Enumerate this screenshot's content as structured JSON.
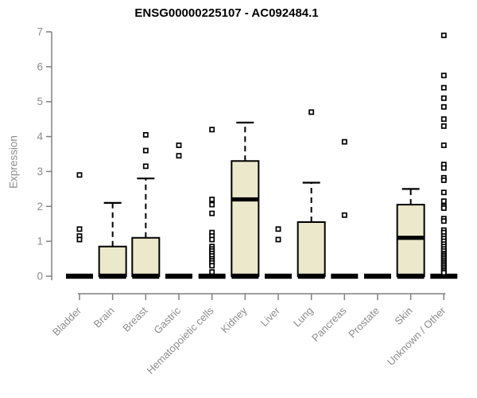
{
  "window": {
    "title": "ENSG00000225107 - AC092484.1"
  },
  "colors": {
    "background": "#ffffff",
    "box_fill": "#ECE8CB",
    "box_stroke": "#000000",
    "median_color": "#000000",
    "outlier_stroke": "#000000",
    "axis_line": "#808080",
    "axis_text": "#8c8c8c",
    "title_text": "#000000"
  },
  "chart_data": {
    "type": "boxplot",
    "title": "ENSG00000225107 - AC092484.1",
    "xlabel": "",
    "ylabel": "Expression",
    "ylim": [
      0,
      7
    ],
    "yticks": [
      0,
      1,
      2,
      3,
      4,
      5,
      6,
      7
    ],
    "grid": false,
    "legend": null,
    "categories": [
      "Bladder",
      "Brain",
      "Breast",
      "Gastric",
      "Hematopoietic cells",
      "Kidney",
      "Liver",
      "Lung",
      "Pancreas",
      "Prostate",
      "Skin",
      "Unknown / Other"
    ],
    "series": [
      {
        "category": "Bladder",
        "whisker_low": 0,
        "q1": 0,
        "median": 0,
        "q3": 0,
        "whisker_high": 0,
        "outliers": [
          2.9,
          1.35,
          1.15,
          1.05
        ]
      },
      {
        "category": "Brain",
        "whisker_low": 0,
        "q1": 0,
        "median": 0,
        "q3": 0.85,
        "whisker_high": 2.1,
        "outliers": []
      },
      {
        "category": "Breast",
        "whisker_low": 0,
        "q1": 0,
        "median": 0,
        "q3": 1.1,
        "whisker_high": 2.8,
        "outliers": [
          4.05,
          3.6,
          3.15
        ]
      },
      {
        "category": "Gastric",
        "whisker_low": 0,
        "q1": 0,
        "median": 0,
        "q3": 0,
        "whisker_high": 0,
        "outliers": [
          3.75,
          3.45
        ]
      },
      {
        "category": "Hematopoietic cells",
        "whisker_low": 0,
        "q1": 0,
        "median": 0,
        "q3": 0,
        "whisker_high": 0,
        "outliers": [
          4.2,
          2.2,
          2.05,
          1.8,
          1.25,
          1.15,
          1.05,
          0.85,
          0.78,
          0.72,
          0.65,
          0.58,
          0.5,
          0.44,
          0.38,
          0.3,
          0.12
        ]
      },
      {
        "category": "Kidney",
        "whisker_low": 0,
        "q1": 0,
        "median": 2.2,
        "q3": 3.3,
        "whisker_high": 4.4,
        "outliers": []
      },
      {
        "category": "Liver",
        "whisker_low": 0,
        "q1": 0,
        "median": 0,
        "q3": 0,
        "whisker_high": 0,
        "outliers": [
          1.35,
          1.05
        ]
      },
      {
        "category": "Lung",
        "whisker_low": 0,
        "q1": 0,
        "median": 0,
        "q3": 1.55,
        "whisker_high": 2.68,
        "outliers": [
          4.7
        ]
      },
      {
        "category": "Pancreas",
        "whisker_low": 0,
        "q1": 0,
        "median": 0,
        "q3": 0,
        "whisker_high": 0,
        "outliers": [
          3.85,
          1.75
        ]
      },
      {
        "category": "Prostate",
        "whisker_low": 0,
        "q1": 0,
        "median": 0,
        "q3": 0,
        "whisker_high": 0,
        "outliers": []
      },
      {
        "category": "Skin",
        "whisker_low": 0,
        "q1": 0,
        "median": 1.1,
        "q3": 2.05,
        "whisker_high": 2.5,
        "outliers": []
      },
      {
        "category": "Unknown / Other",
        "whisker_low": 0,
        "q1": 0,
        "median": 0,
        "q3": 0,
        "whisker_high": 0,
        "outliers": [
          6.9,
          5.75,
          5.4,
          5.1,
          4.85,
          4.5,
          4.3,
          3.75,
          3.2,
          3.1,
          2.82,
          2.75,
          2.4,
          2.15,
          2.0,
          1.95,
          1.65,
          1.58,
          1.32,
          1.25,
          1.15,
          1.08,
          1.0,
          0.92,
          0.85,
          0.78,
          0.72,
          0.65,
          0.6,
          0.55,
          0.5,
          0.45,
          0.4,
          0.35,
          0.3,
          0.25,
          0.2,
          0.15,
          0.1
        ]
      }
    ]
  }
}
